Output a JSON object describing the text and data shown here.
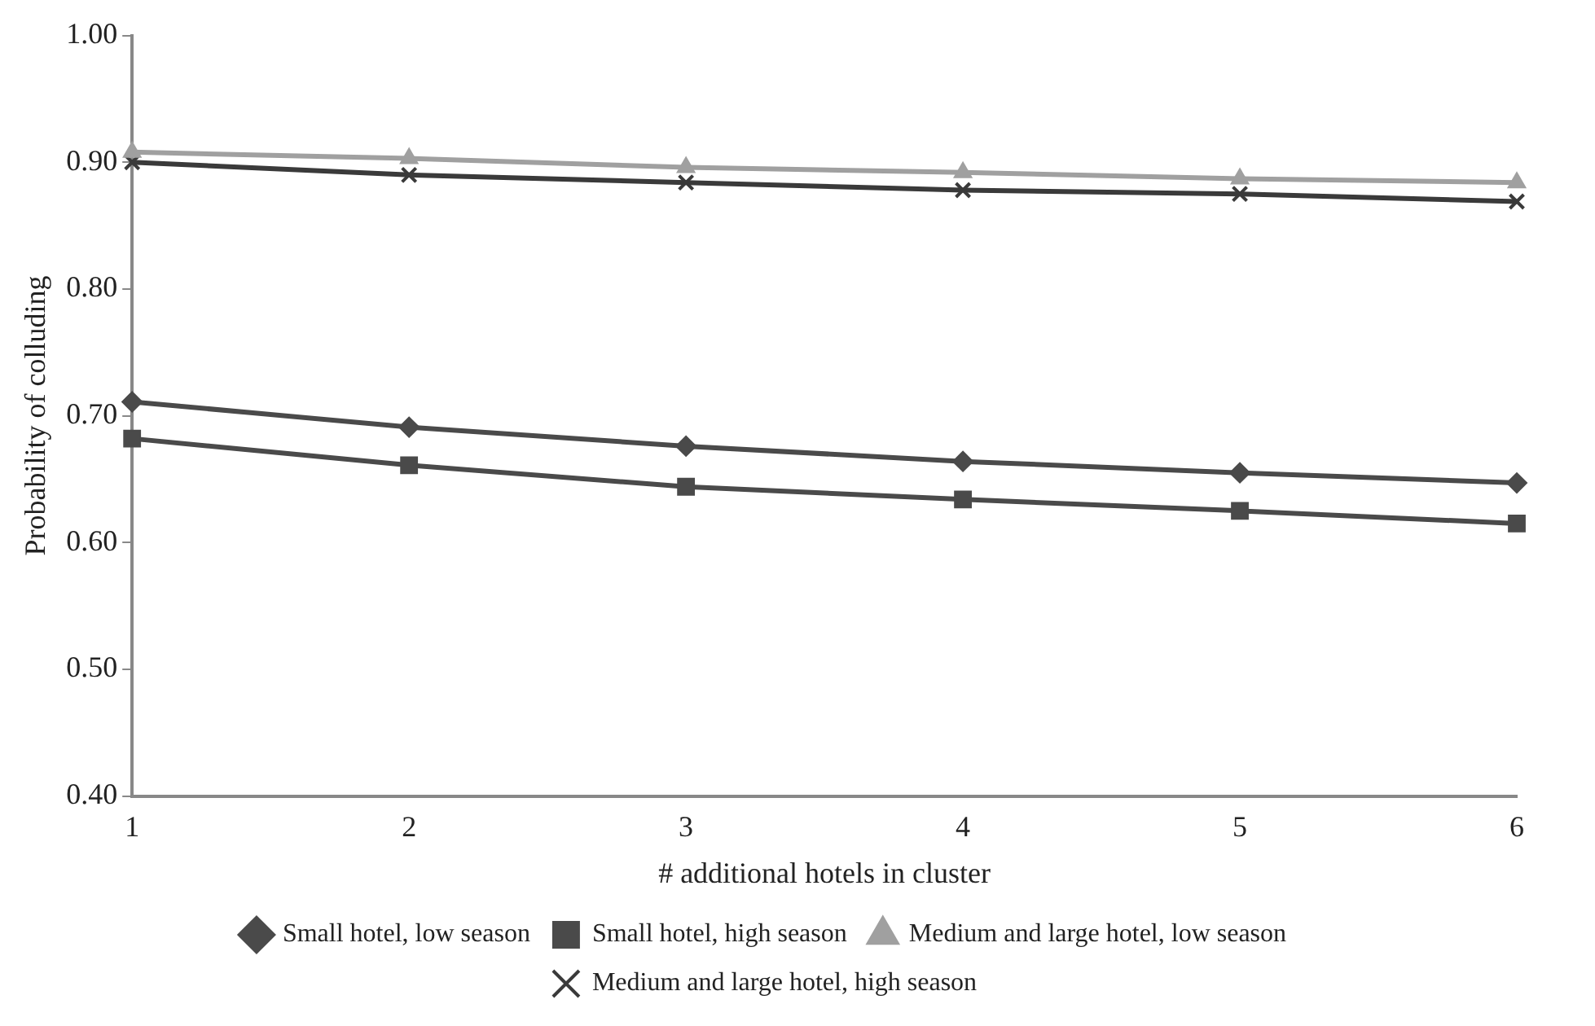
{
  "chart_data": {
    "type": "line",
    "xlabel": "# additional hotels in cluster",
    "ylabel": "Probability of colluding",
    "categories": [
      "1",
      "2",
      "3",
      "4",
      "5",
      "6"
    ],
    "series": [
      {
        "name": "Small hotel, low season",
        "color": "#4a4a4a",
        "marker": "diamond",
        "values": [
          0.711,
          0.691,
          0.676,
          0.664,
          0.655,
          0.647
        ]
      },
      {
        "name": "Small hotel, high season",
        "color": "#4a4a4a",
        "marker": "square",
        "values": [
          0.682,
          0.661,
          0.644,
          0.634,
          0.625,
          0.615
        ]
      },
      {
        "name": "Medium and large hotel, low season",
        "color": "#a0a0a0",
        "marker": "triangle",
        "values": [
          0.908,
          0.903,
          0.896,
          0.892,
          0.887,
          0.884
        ]
      },
      {
        "name": "Medium and large hotel, high season",
        "color": "#3a3a3a",
        "marker": "cross",
        "values": [
          0.9,
          0.89,
          0.884,
          0.878,
          0.875,
          0.869
        ]
      }
    ],
    "ylim": [
      0.4,
      1.0
    ],
    "yticks": [
      {
        "value": 0.4,
        "label": "0.40"
      },
      {
        "value": 0.5,
        "label": "0.50"
      },
      {
        "value": 0.6,
        "label": "0.60"
      },
      {
        "value": 0.7,
        "label": "0.70"
      },
      {
        "value": 0.8,
        "label": "0.80"
      },
      {
        "value": 0.9,
        "label": "0.90"
      },
      {
        "value": 1.0,
        "label": "1.00"
      }
    ],
    "grid": false,
    "legend": "bottom"
  }
}
